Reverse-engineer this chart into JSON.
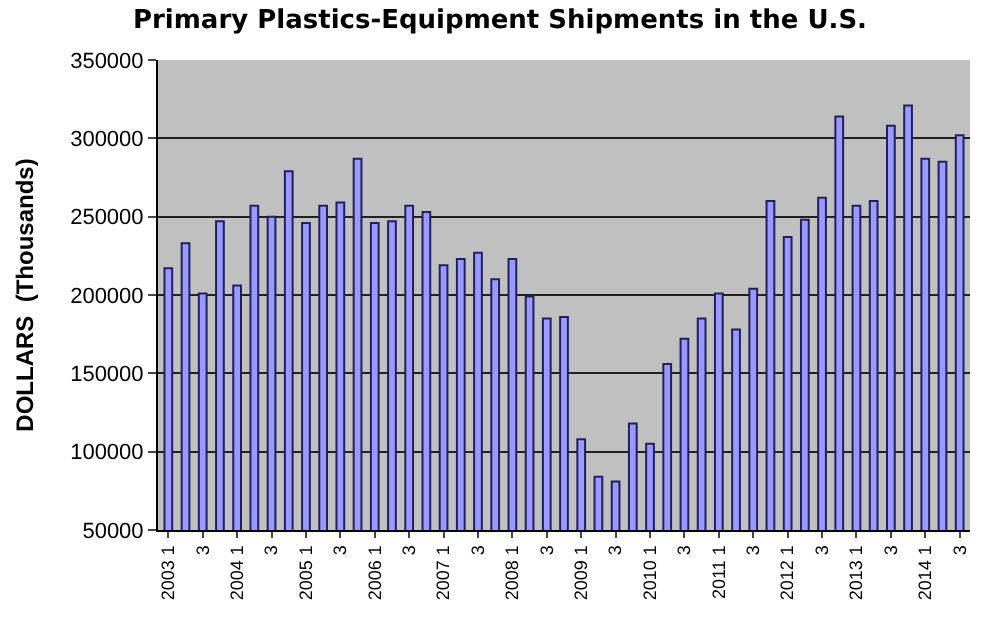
{
  "chart_data": {
    "type": "bar",
    "title": "Primary Plastics-Equipment Shipments in the U.S.",
    "ylabel": "DOLLARS  (Thousands)",
    "categories": [
      "2003 1",
      null,
      "3",
      null,
      "2004 1",
      null,
      "3",
      null,
      "2005 1",
      null,
      "3",
      null,
      "2006 1",
      null,
      "3",
      null,
      "2007 1",
      null,
      "3",
      null,
      "2008 1",
      null,
      "3",
      null,
      "2009 1",
      null,
      "3",
      null,
      "2010 1",
      null,
      "3",
      null,
      "2011 1",
      null,
      "3",
      null,
      "2012 1",
      null,
      "3",
      null,
      "2013 1",
      null,
      "3",
      null,
      "2014 1",
      null,
      "3"
    ],
    "values": [
      217000,
      233000,
      201000,
      247000,
      206000,
      257000,
      250000,
      279000,
      246000,
      257000,
      259000,
      287000,
      246000,
      247000,
      257000,
      253000,
      219000,
      223000,
      227000,
      210000,
      223000,
      199000,
      185000,
      186000,
      108000,
      84000,
      81000,
      118000,
      105000,
      156000,
      172000,
      185000,
      201000,
      178000,
      204000,
      260000,
      237000,
      248000,
      262000,
      314000,
      257000,
      260000,
      308000,
      321000,
      287000,
      285000,
      302000
    ],
    "color": "#9999ff",
    "ylim": [
      50000,
      350000
    ],
    "yticks": [
      50000,
      100000,
      150000,
      200000,
      250000,
      300000,
      350000
    ],
    "grid": "y"
  }
}
